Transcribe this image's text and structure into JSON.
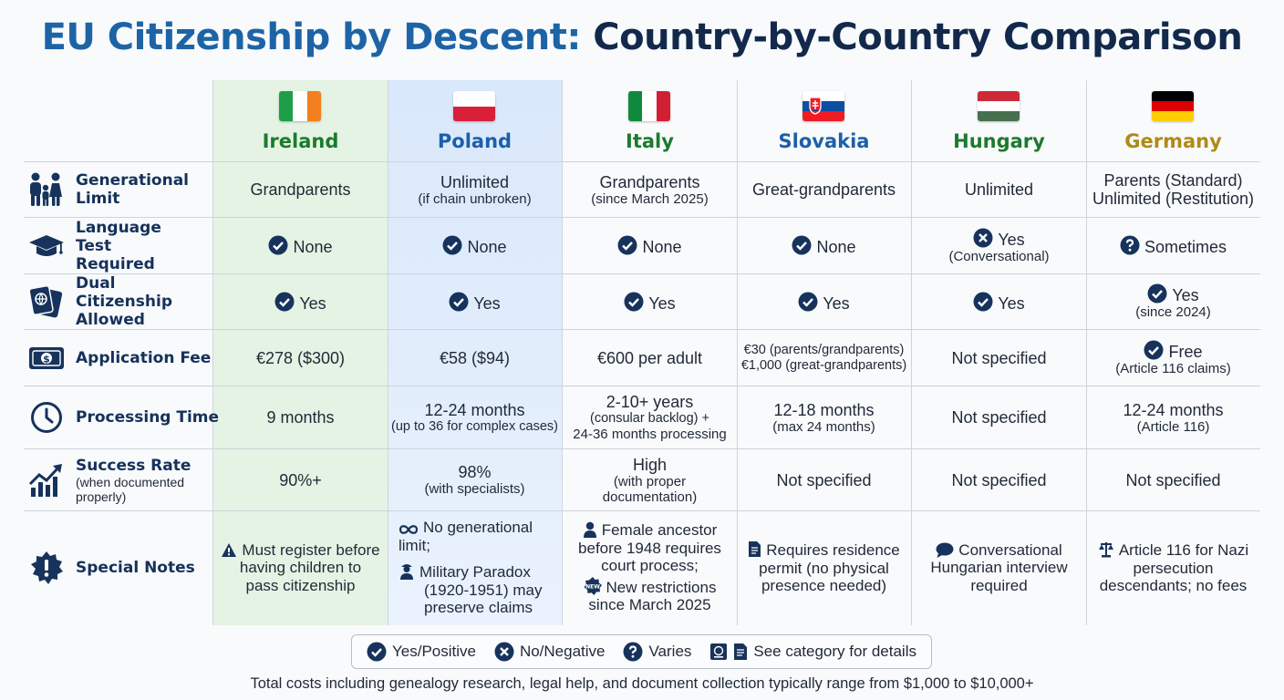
{
  "title": {
    "part1": "EU Citizenship by Descent:",
    "part2": "Country-by-Country Comparison"
  },
  "countries": [
    {
      "name": "Ireland",
      "color": "#1d7a2d",
      "flag": [
        "#1f9e4a",
        "#ffffff",
        "#f47f1e"
      ]
    },
    {
      "name": "Poland",
      "color": "#1d5fa8",
      "flag": [
        "#ffffff",
        "#d9203a"
      ]
    },
    {
      "name": "Italy",
      "color": "#1d7a2d",
      "flag": [
        "#0f8a3c",
        "#ffffff",
        "#d21f33"
      ]
    },
    {
      "name": "Slovakia",
      "color": "#1d5fa8",
      "flag": [
        "#ffffff",
        "#0b4ea2",
        "#ee1c25"
      ]
    },
    {
      "name": "Hungary",
      "color": "#1d7a2d",
      "flag": [
        "#ce2939",
        "#ffffff",
        "#477050"
      ]
    },
    {
      "name": "Germany",
      "color": "#b08a16",
      "flag": [
        "#000000",
        "#dd0000",
        "#ffce00"
      ]
    }
  ],
  "rows": {
    "generational": {
      "label": "Generational Limit",
      "icon": "family-icon",
      "cells": [
        {
          "main": "Grandparents"
        },
        {
          "main": "Unlimited",
          "sub": "(if chain unbroken)"
        },
        {
          "main": "Grandparents",
          "sub": "(since March 2025)"
        },
        {
          "main": "Great-grandparents"
        },
        {
          "main": "Unlimited"
        },
        {
          "main": "Parents (Standard)",
          "main2": "Unlimited (Restitution)"
        }
      ]
    },
    "language": {
      "label": "Language Test Required",
      "icon": "graduation-cap-icon",
      "cells": [
        {
          "main": "None",
          "status": "yes"
        },
        {
          "main": "None",
          "status": "yes"
        },
        {
          "main": "None",
          "status": "yes"
        },
        {
          "main": "None",
          "status": "yes"
        },
        {
          "main": "Yes",
          "sub": "(Conversational)",
          "status": "no"
        },
        {
          "main": "Sometimes",
          "status": "varies"
        }
      ]
    },
    "dual": {
      "label": "Dual Citizenship Allowed",
      "icon": "passport-icon",
      "cells": [
        {
          "main": "Yes",
          "status": "yes"
        },
        {
          "main": "Yes",
          "status": "yes"
        },
        {
          "main": "Yes",
          "status": "yes"
        },
        {
          "main": "Yes",
          "status": "yes"
        },
        {
          "main": "Yes",
          "status": "yes"
        },
        {
          "main": "Yes",
          "sub": "(since 2024)",
          "status": "yes"
        }
      ]
    },
    "fee": {
      "label": "Application Fee",
      "icon": "money-icon",
      "cells": [
        {
          "main": "€278 ($300)"
        },
        {
          "main": "€58 ($94)"
        },
        {
          "main": "€600 per adult"
        },
        {
          "sm1": "€30 (parents/grandparents)",
          "sm2": "€1,000 (great-grandparents)"
        },
        {
          "main": "Not specified"
        },
        {
          "main": "Free",
          "sub": "(Article 116 claims)",
          "status": "yes"
        }
      ]
    },
    "processing": {
      "label": "Processing Time",
      "icon": "clock-icon",
      "cells": [
        {
          "main": "9 months"
        },
        {
          "main": "12-24 months",
          "sm": "(up to 36 for complex cases)"
        },
        {
          "main": "2-10+ years",
          "sm1": "(consular backlog) +",
          "sm2": "24-36 months processing"
        },
        {
          "main": "12-18 months",
          "sub": "(max 24 months)"
        },
        {
          "main": "Not specified"
        },
        {
          "main": "12-24 months",
          "sub": "(Article 116)"
        }
      ]
    },
    "success": {
      "label": "Success Rate",
      "sublabel1": "(when documented",
      "sublabel2": "properly)",
      "icon": "growth-chart-icon",
      "cells": [
        {
          "main": "90%+"
        },
        {
          "main": "98%",
          "sub": "(with specialists)"
        },
        {
          "main": "High",
          "sub1": "(with proper",
          "sub2": "documentation)"
        },
        {
          "main": "Not specified"
        },
        {
          "main": "Not specified"
        },
        {
          "main": "Not specified"
        }
      ]
    },
    "notes": {
      "label": "Special Notes",
      "icon": "badge-alert-icon",
      "cells": [
        {
          "l1": "Must register before",
          "l2": "having children to",
          "l3": "pass citizenship",
          "icon": "warning-icon"
        },
        {
          "a1": "No generational",
          "a2": "limit;",
          "b1": "Military Paradox",
          "b2": "(1920-1951) may",
          "b3": "preserve claims"
        },
        {
          "a1": "Female ancestor",
          "a2": "before 1948 requires",
          "a3": "court process;",
          "b1": "New restrictions",
          "b2": "since March 2025"
        },
        {
          "l1": "Requires residence",
          "l2": "permit (no physical",
          "l3": "presence needed)",
          "icon": "document-icon"
        },
        {
          "l1": "Conversational",
          "l2": "Hungarian interview",
          "l3": "required",
          "icon": "speech-bubble-icon"
        },
        {
          "l1": "Article 116 for Nazi",
          "l2": "persecution",
          "l3": "descendants; no fees",
          "icon": "scales-icon"
        }
      ]
    }
  },
  "legend": {
    "yes": "Yes/Positive",
    "no": "No/Negative",
    "varies": "Varies",
    "details": "See category for details"
  },
  "footer": "Total costs including genealogy research, legal help, and document collection typically range from $1,000 to $10,000+"
}
